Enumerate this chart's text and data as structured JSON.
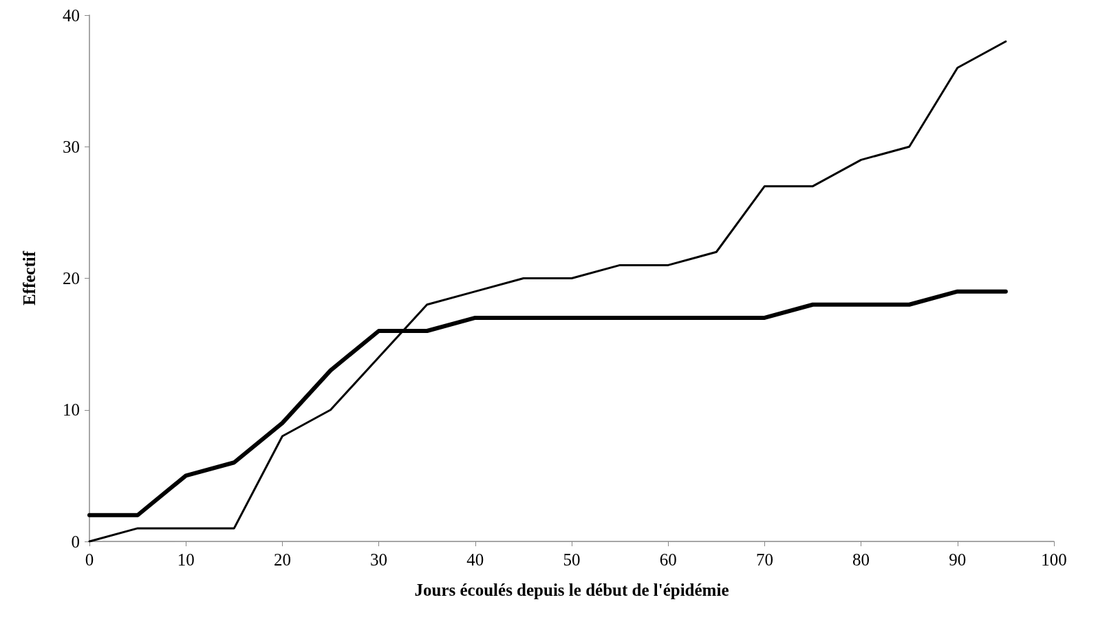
{
  "chart_data": {
    "type": "line",
    "xlabel": "Jours écoulés depuis le début de l'épidémie",
    "ylabel": "Effectif",
    "x": [
      0,
      5,
      10,
      15,
      20,
      25,
      30,
      35,
      40,
      45,
      50,
      55,
      60,
      65,
      70,
      75,
      80,
      85,
      90,
      95
    ],
    "series": [
      {
        "color": "#000000",
        "values": [
          2,
          2,
          5,
          6,
          9,
          13,
          16,
          16,
          17,
          17,
          17,
          17,
          17,
          17,
          17,
          18,
          18,
          18,
          19,
          19
        ]
      },
      {
        "color": "#000000",
        "values": [
          0,
          1,
          1,
          1,
          8,
          10,
          14,
          18,
          19,
          20,
          20,
          21,
          21,
          22,
          27,
          27,
          29,
          30,
          36,
          38
        ]
      }
    ],
    "xlim": [
      0,
      100
    ],
    "xticks": [
      0,
      10,
      20,
      30,
      40,
      50,
      60,
      70,
      80,
      90,
      100
    ],
    "ylim": [
      0,
      40
    ],
    "yticks": [
      0,
      10,
      20,
      30,
      40
    ],
    "grid": false,
    "marker": "none",
    "line_style": "solid"
  }
}
